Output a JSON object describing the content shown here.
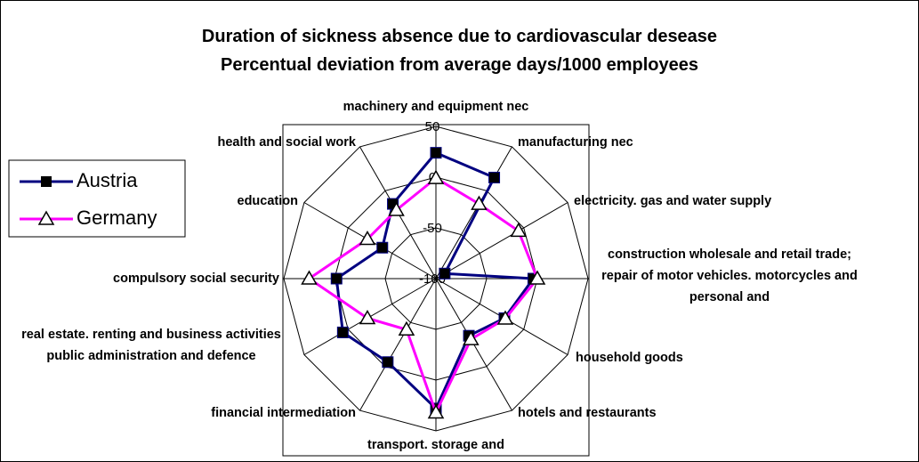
{
  "chart_data": {
    "type": "radar",
    "title": "Duration of sickness absence due to cardiovascular desease",
    "subtitle": "Percentual deviation from average days/1000 employees",
    "categories": [
      "machinery and equipment nec",
      "manufacturing nec",
      "electricity. gas and water supply",
      "construction wholesale and retail trade; repair of motor vehicles. motorcycles and personal and",
      "household goods",
      "hotels and restaurants",
      "transport. storage and",
      "financial intermediation",
      "real estate. renting and business activities public administration and defence",
      "compulsory social security",
      "education",
      "health and social work"
    ],
    "series": [
      {
        "name": "Austria",
        "color": "#000080",
        "marker": "square",
        "values": [
          24,
          15,
          -90,
          -4,
          -22,
          -35,
          28,
          -5,
          6,
          -2,
          -39,
          -15
        ]
      },
      {
        "name": "Germany",
        "color": "#ff00ff",
        "marker": "triangle",
        "values": [
          -1,
          -15,
          -6,
          0,
          -21,
          -31,
          32,
          -42,
          -22,
          25,
          -22,
          -22
        ]
      }
    ],
    "ylim": [
      -100,
      50
    ],
    "yticks": [
      -100,
      -50,
      0,
      50
    ],
    "grid": true,
    "legend": "left"
  }
}
